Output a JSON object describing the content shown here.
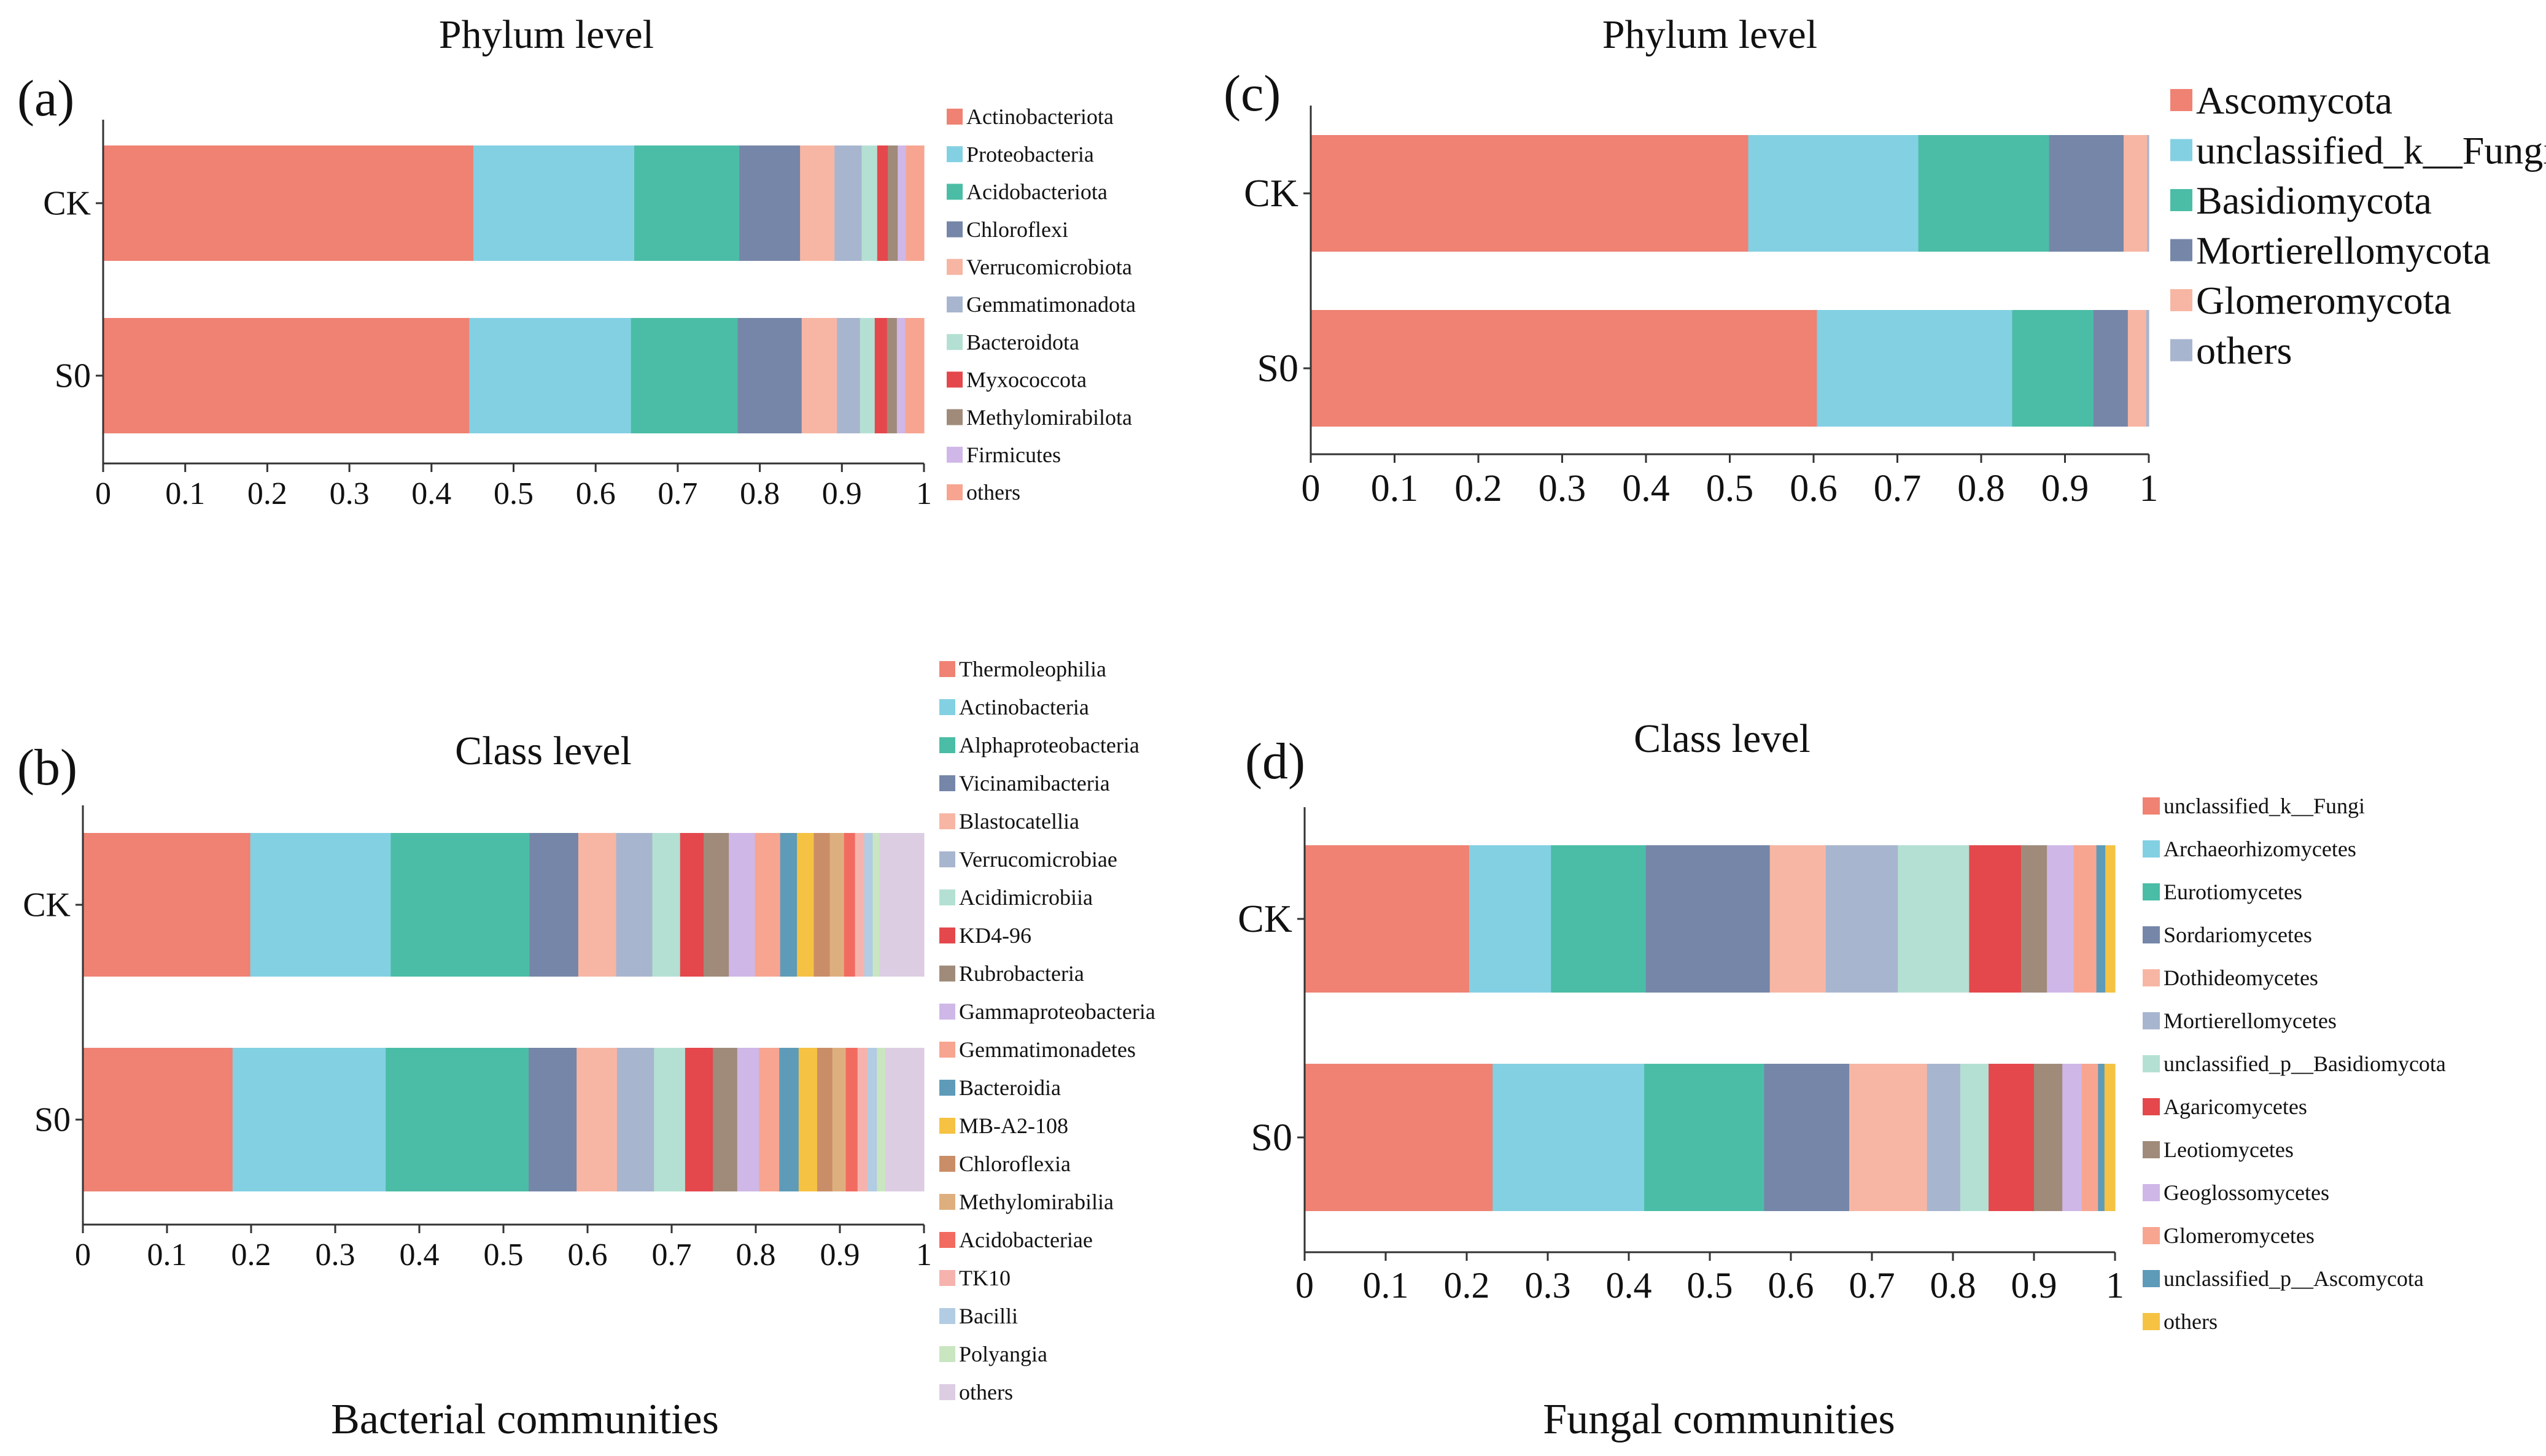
{
  "figure": {
    "captions": {
      "bacterial": "Bacterial communities",
      "fungal": "Fungal communities"
    }
  },
  "chart_data": [
    {
      "id": "a",
      "type": "bar",
      "orientation": "horizontal",
      "stacked": true,
      "panel_label": "(a)",
      "title": "Phylum level",
      "categories": [
        "CK",
        "S0"
      ],
      "xlim": [
        0,
        1
      ],
      "xticks": [
        "0",
        "0.1",
        "0.2",
        "0.3",
        "0.4",
        "0.5",
        "0.6",
        "0.7",
        "0.8",
        "0.9",
        "1"
      ],
      "legend_position": "right",
      "series": [
        {
          "name": "Actinobacteriota",
          "color": "#EF8273",
          "values": [
            0.451,
            0.446
          ]
        },
        {
          "name": "Proteobacteria",
          "color": "#83D0E3",
          "values": [
            0.196,
            0.197
          ]
        },
        {
          "name": "Acidobacteriota",
          "color": "#4BBDA6",
          "values": [
            0.128,
            0.13
          ]
        },
        {
          "name": "Chloroflexi",
          "color": "#7586A8",
          "values": [
            0.074,
            0.078
          ]
        },
        {
          "name": "Verrucomicrobiota",
          "color": "#F7B6A3",
          "values": [
            0.042,
            0.043
          ]
        },
        {
          "name": "Gemmatimonadota",
          "color": "#A8B5CF",
          "values": [
            0.033,
            0.028
          ]
        },
        {
          "name": "Bacteroidota",
          "color": "#B4E0D3",
          "values": [
            0.019,
            0.018
          ]
        },
        {
          "name": "Myxococcota",
          "color": "#E4484C",
          "values": [
            0.013,
            0.015
          ]
        },
        {
          "name": "Methylomirabilota",
          "color": "#A08B7A",
          "values": [
            0.012,
            0.012
          ]
        },
        {
          "name": "Firmicutes",
          "color": "#CFB7E8",
          "values": [
            0.01,
            0.01
          ]
        },
        {
          "name": "others",
          "color": "#F7A591",
          "values": [
            0.022,
            0.023
          ]
        }
      ]
    },
    {
      "id": "b",
      "type": "bar",
      "orientation": "horizontal",
      "stacked": true,
      "panel_label": "(b)",
      "title": "Class level",
      "categories": [
        "CK",
        "S0"
      ],
      "xlim": [
        0,
        1
      ],
      "xticks": [
        "0",
        "0.1",
        "0.2",
        "0.3",
        "0.4",
        "0.5",
        "0.6",
        "0.7",
        "0.8",
        "0.9",
        "1"
      ],
      "legend_position": "right",
      "series": [
        {
          "name": "Thermoleophilia",
          "color": "#EF8273",
          "values": [
            0.199,
            0.178
          ]
        },
        {
          "name": "Actinobacteria",
          "color": "#83D0E3",
          "values": [
            0.167,
            0.182
          ]
        },
        {
          "name": "Alphaproteobacteria",
          "color": "#4BBDA6",
          "values": [
            0.165,
            0.17
          ]
        },
        {
          "name": "Vicinamibacteria",
          "color": "#7586A8",
          "values": [
            0.058,
            0.057
          ]
        },
        {
          "name": "Blastocatellia",
          "color": "#F7B6A3",
          "values": [
            0.045,
            0.048
          ]
        },
        {
          "name": "Verrucomicrobiae",
          "color": "#A8B5CF",
          "values": [
            0.043,
            0.044
          ]
        },
        {
          "name": "Acidimicrobiia",
          "color": "#B4E0D3",
          "values": [
            0.033,
            0.037
          ]
        },
        {
          "name": "KD4-96",
          "color": "#E4484C",
          "values": [
            0.028,
            0.033
          ]
        },
        {
          "name": "Rubrobacteria",
          "color": "#A08B7A",
          "values": [
            0.03,
            0.029
          ]
        },
        {
          "name": "Gammaproteobacteria",
          "color": "#CFB7E8",
          "values": [
            0.031,
            0.026
          ]
        },
        {
          "name": "Gemmatimonadetes",
          "color": "#F7A591",
          "values": [
            0.03,
            0.024
          ]
        },
        {
          "name": "Bacteroidia",
          "color": "#5E9BB9",
          "values": [
            0.02,
            0.023
          ]
        },
        {
          "name": "MB-A2-108",
          "color": "#F6C243",
          "values": [
            0.02,
            0.022
          ]
        },
        {
          "name": "Chloroflexia",
          "color": "#C98E68",
          "values": [
            0.019,
            0.018
          ]
        },
        {
          "name": "Methylomirabilia",
          "color": "#DEAF7E",
          "values": [
            0.017,
            0.016
          ]
        },
        {
          "name": "Acidobacteriae",
          "color": "#F26B61",
          "values": [
            0.013,
            0.014
          ]
        },
        {
          "name": "TK10",
          "color": "#F6B3AD",
          "values": [
            0.011,
            0.012
          ]
        },
        {
          "name": "Bacilli",
          "color": "#B2CCE4",
          "values": [
            0.01,
            0.011
          ]
        },
        {
          "name": "Polyangia",
          "color": "#C9E6C0",
          "values": [
            0.008,
            0.01
          ]
        },
        {
          "name": "others",
          "color": "#DCCDE3",
          "values": [
            0.053,
            0.046
          ]
        }
      ]
    },
    {
      "id": "c",
      "type": "bar",
      "orientation": "horizontal",
      "stacked": true,
      "panel_label": "(c)",
      "title": "Phylum level",
      "categories": [
        "CK",
        "S0"
      ],
      "xlim": [
        0,
        1
      ],
      "xticks": [
        "0",
        "0.1",
        "0.2",
        "0.3",
        "0.4",
        "0.5",
        "0.6",
        "0.7",
        "0.8",
        "0.9",
        "1"
      ],
      "legend_position": "right",
      "series": [
        {
          "name": "Ascomycota",
          "color": "#EF8273",
          "values": [
            0.522,
            0.604
          ]
        },
        {
          "name": "unclassified_k__Fungi",
          "color": "#83D0E3",
          "values": [
            0.203,
            0.233
          ]
        },
        {
          "name": "Basidiomycota",
          "color": "#4BBDA6",
          "values": [
            0.156,
            0.097
          ]
        },
        {
          "name": "Mortierellomycota",
          "color": "#7586A8",
          "values": [
            0.089,
            0.041
          ]
        },
        {
          "name": "Glomeromycota",
          "color": "#F7B6A3",
          "values": [
            0.028,
            0.022
          ]
        },
        {
          "name": "others",
          "color": "#A8B5CF",
          "values": [
            0.002,
            0.003
          ]
        }
      ]
    },
    {
      "id": "d",
      "type": "bar",
      "orientation": "horizontal",
      "stacked": true,
      "panel_label": "(d)",
      "title": "Class level",
      "categories": [
        "CK",
        "S0"
      ],
      "xlim": [
        0,
        1
      ],
      "xticks": [
        "0",
        "0.1",
        "0.2",
        "0.3",
        "0.4",
        "0.5",
        "0.6",
        "0.7",
        "0.8",
        "0.9",
        "1"
      ],
      "legend_position": "right",
      "series": [
        {
          "name": "unclassified_k__Fungi",
          "color": "#EF8273",
          "values": [
            0.203,
            0.232
          ]
        },
        {
          "name": "Archaeorhizomycetes",
          "color": "#83D0E3",
          "values": [
            0.101,
            0.187
          ]
        },
        {
          "name": "Eurotiomycetes",
          "color": "#4BBDA6",
          "values": [
            0.117,
            0.148
          ]
        },
        {
          "name": "Sordariomycetes",
          "color": "#7586A8",
          "values": [
            0.153,
            0.105
          ]
        },
        {
          "name": "Dothideomycetes",
          "color": "#F7B6A3",
          "values": [
            0.069,
            0.096
          ]
        },
        {
          "name": "Mortierellomycetes",
          "color": "#A8B5CF",
          "values": [
            0.089,
            0.041
          ]
        },
        {
          "name": "unclassified_p__Basidiomycota",
          "color": "#B4E0D3",
          "values": [
            0.088,
            0.035
          ]
        },
        {
          "name": "Agaricomycetes",
          "color": "#E4484C",
          "values": [
            0.064,
            0.056
          ]
        },
        {
          "name": "Leotiomycetes",
          "color": "#A08B7A",
          "values": [
            0.032,
            0.035
          ]
        },
        {
          "name": "Geoglossomycetes",
          "color": "#CFB7E8",
          "values": [
            0.033,
            0.024
          ]
        },
        {
          "name": "Glomeromycetes",
          "color": "#F7A591",
          "values": [
            0.028,
            0.02
          ]
        },
        {
          "name": "unclassified_p__Ascomycota",
          "color": "#5E9BB9",
          "values": [
            0.011,
            0.008
          ]
        },
        {
          "name": "others",
          "color": "#F6C243",
          "values": [
            0.012,
            0.013
          ]
        }
      ]
    }
  ]
}
